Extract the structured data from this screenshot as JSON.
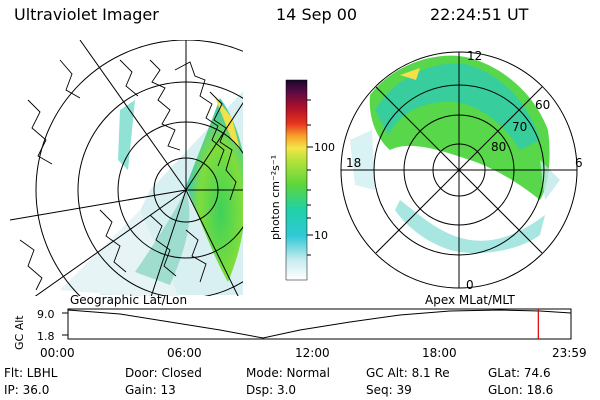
{
  "header": {
    "title": "Ultraviolet Imager",
    "date": "14 Sep 00",
    "time": "22:24:51 UT"
  },
  "colorbar": {
    "unit_label": "photon cm⁻²s⁻¹",
    "tick_100": "100",
    "tick_10": "10"
  },
  "polar_plot": {
    "label_noon": "12",
    "label_dusk": "18",
    "label_dawn": "6",
    "label_midnight": "0",
    "label_lat60": "60",
    "label_lat70": "70",
    "label_lat80": "80"
  },
  "panel_labels": {
    "left": "Geographic Lat/Lon",
    "right": "Apex MLat/MLT"
  },
  "altitude_plot": {
    "axis_label": "GC Alt",
    "y_max": "9.0",
    "y_min": "1.8",
    "x_ticks": [
      "00:00",
      "06:00",
      "12:00",
      "18:00",
      "23:59"
    ],
    "current_time_fraction": 0.935
  },
  "info": {
    "row1": {
      "flt": "Flt: LBHL",
      "door": "Door: Closed",
      "mode": "Mode: Normal",
      "gc_alt": "GC Alt: 8.1 Re",
      "glat": "GLat:  74.6"
    },
    "row2": {
      "ip": "IP: 36.0",
      "gain": "Gain: 13",
      "dsp": "Dsp:      3.0",
      "seq": "Seq: 39",
      "glon": "GLon:  18.6"
    }
  },
  "colors": {
    "red_marker": "#dd0000"
  }
}
